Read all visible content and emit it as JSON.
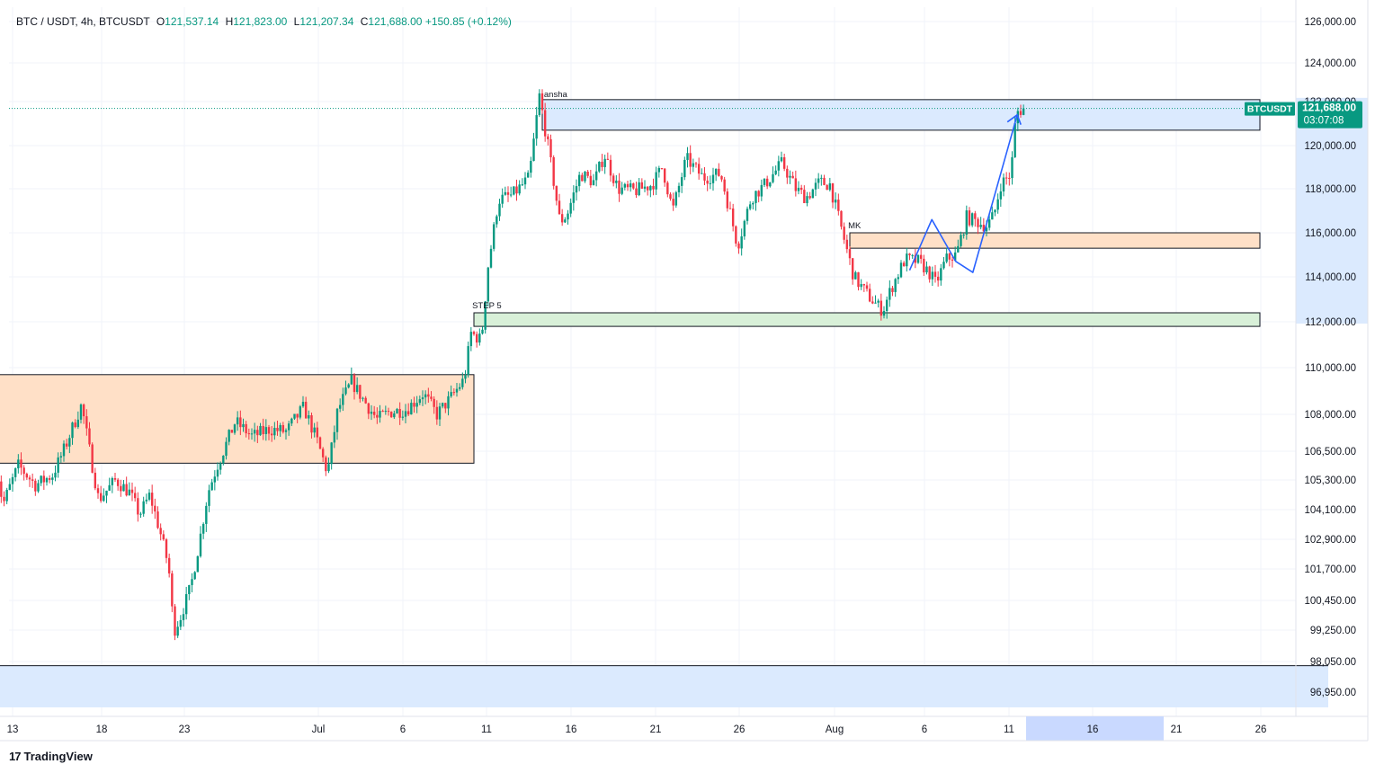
{
  "header": {
    "symbol": "BTC / USDT, 4h, BTCUSDT",
    "open_label": "O",
    "open": "121,537.14",
    "high_label": "H",
    "high": "121,823.00",
    "low_label": "L",
    "low": "121,207.34",
    "close_label": "C",
    "close": "121,688.00",
    "change": "+150.85 (+0.12%)"
  },
  "price_tag": {
    "symbol": "BTCUSDT",
    "price": "121,688.00",
    "countdown": "03:07:08"
  },
  "footer": {
    "logo_mark": "17",
    "brand": "TradingView"
  },
  "colors": {
    "up": "#089981",
    "down": "#f23645",
    "zone_orange": "#ffe0c7",
    "zone_blue": "#dbeafe",
    "zone_green": "#d8f0d8",
    "path": "#2962ff",
    "grid": "#f0f3fa"
  },
  "chart_data": {
    "type": "candlestick",
    "timeframe": "4h",
    "y_tick_labels": [
      "126,000.00",
      "124,000.00",
      "122,000.00",
      "120,000.00",
      "118,000.00",
      "116,000.00",
      "114,000.00",
      "112,000.00",
      "110,000.00",
      "108,000.00",
      "106,500.00",
      "105,300.00",
      "104,100.00",
      "102,900.00",
      "101,700.00",
      "100,450.00",
      "99,250.00",
      "98,050.00",
      "96,950.00"
    ],
    "x_tick_labels": [
      "13",
      "18",
      "23",
      "Jul",
      "6",
      "11",
      "16",
      "21",
      "26",
      "Aug",
      "6",
      "11",
      "16",
      "21",
      "26"
    ],
    "last_price": 121688,
    "annotations": [
      {
        "label": "ansha",
        "price": 122000
      },
      {
        "label": "MK",
        "price": 116000
      },
      {
        "label": "STEP 5",
        "price": 112400
      }
    ],
    "zones": [
      {
        "name": "orange-range",
        "from": "Jun 12",
        "to": "Jul 10",
        "top": 109700,
        "bottom": 106000
      },
      {
        "name": "blue-supply",
        "from": "Jul 14",
        "to": "Aug 25",
        "top": 122100,
        "bottom": 120700
      },
      {
        "name": "orange-mk",
        "from": "Aug 1",
        "to": "Aug 25",
        "top": 116000,
        "bottom": 115300
      },
      {
        "name": "green-step5",
        "from": "Jul 10",
        "to": "Aug 25",
        "top": 112400,
        "bottom": 111800
      },
      {
        "name": "blue-lower",
        "from": "Jun 12",
        "to": "Aug 29",
        "top": 97900,
        "bottom": 96400
      }
    ],
    "projection_path": [
      {
        "date": "Aug 4.5",
        "price": 114300
      },
      {
        "date": "Aug 5.8",
        "price": 116600
      },
      {
        "date": "Aug 7.2",
        "price": 114700
      },
      {
        "date": "Aug 8.2",
        "price": 114200
      },
      {
        "date": "Aug 10.8",
        "price": 121400
      }
    ],
    "price_path": [
      {
        "date": "Jun 12.0",
        "price": 106800
      },
      {
        "date": "Jun 12.6",
        "price": 104300
      },
      {
        "date": "Jun 13.5",
        "price": 105900
      },
      {
        "date": "Jun 14.5",
        "price": 105100
      },
      {
        "date": "Jun 15.5",
        "price": 105500
      },
      {
        "date": "Jun 16.2",
        "price": 106600
      },
      {
        "date": "Jun 17.2",
        "price": 108400
      },
      {
        "date": "Jun 17.7",
        "price": 106400
      },
      {
        "date": "Jun 18.2",
        "price": 104500
      },
      {
        "date": "Jun 19.2",
        "price": 105300
      },
      {
        "date": "Jun 20.0",
        "price": 104800
      },
      {
        "date": "Jun 20.6",
        "price": 103900
      },
      {
        "date": "Jun 21.2",
        "price": 104700
      },
      {
        "date": "Jun 21.8",
        "price": 103200
      },
      {
        "date": "Jun 22.3",
        "price": 101800
      },
      {
        "date": "Jun 22.6",
        "price": 99200
      },
      {
        "date": "Jun 23.0",
        "price": 99800
      },
      {
        "date": "Jun 23.6",
        "price": 101000
      },
      {
        "date": "Jun 24.1",
        "price": 102800
      },
      {
        "date": "Jun 24.6",
        "price": 104800
      },
      {
        "date": "Jun 25.2",
        "price": 106000
      },
      {
        "date": "Jun 26.2",
        "price": 107700
      },
      {
        "date": "Jun 27.2",
        "price": 107100
      },
      {
        "date": "Jun 28.2",
        "price": 107400
      },
      {
        "date": "Jun 29.2",
        "price": 107300
      },
      {
        "date": "Jun 30.2",
        "price": 108300
      },
      {
        "date": "Jul 1.0",
        "price": 106900
      },
      {
        "date": "Jul 1.6",
        "price": 105600
      },
      {
        "date": "Jul 2.2",
        "price": 108200
      },
      {
        "date": "Jul 3.0",
        "price": 109400
      },
      {
        "date": "Jul 4.0",
        "price": 108300
      },
      {
        "date": "Jul 4.5",
        "price": 107800
      },
      {
        "date": "Jul 5.2",
        "price": 108100
      },
      {
        "date": "Jul 6.2",
        "price": 108200
      },
      {
        "date": "Jul 7.2",
        "price": 108900
      },
      {
        "date": "Jul 8.0",
        "price": 108000
      },
      {
        "date": "Jul 8.8",
        "price": 108700
      },
      {
        "date": "Jul 9.6",
        "price": 109500
      },
      {
        "date": "Jul 10.0",
        "price": 111500
      },
      {
        "date": "Jul 10.6",
        "price": 111200
      },
      {
        "date": "Jul 11.0",
        "price": 114500
      },
      {
        "date": "Jul 11.6",
        "price": 117500
      },
      {
        "date": "Jul 12.4",
        "price": 117700
      },
      {
        "date": "Jul 13.4",
        "price": 118500
      },
      {
        "date": "Jul 14.0",
        "price": 122300
      },
      {
        "date": "Jul 14.6",
        "price": 119500
      },
      {
        "date": "Jul 15.2",
        "price": 116500
      },
      {
        "date": "Jul 15.6",
        "price": 116800
      },
      {
        "date": "Jul 16.4",
        "price": 118700
      },
      {
        "date": "Jul 17.2",
        "price": 118300
      },
      {
        "date": "Jul 17.8",
        "price": 119600
      },
      {
        "date": "Jul 18.6",
        "price": 118000
      },
      {
        "date": "Jul 19.6",
        "price": 117900
      },
      {
        "date": "Jul 20.6",
        "price": 118200
      },
      {
        "date": "Jul 21.2",
        "price": 119000
      },
      {
        "date": "Jul 21.8",
        "price": 117000
      },
      {
        "date": "Jul 22.6",
        "price": 119400
      },
      {
        "date": "Jul 23.6",
        "price": 118500
      },
      {
        "date": "Jul 24.6",
        "price": 118700
      },
      {
        "date": "Jul 25.2",
        "price": 116800
      },
      {
        "date": "Jul 25.6",
        "price": 115400
      },
      {
        "date": "Jul 26.4",
        "price": 117600
      },
      {
        "date": "Jul 27.2",
        "price": 118200
      },
      {
        "date": "Jul 28.2",
        "price": 119200
      },
      {
        "date": "Jul 29.0",
        "price": 118000
      },
      {
        "date": "Jul 29.6",
        "price": 117600
      },
      {
        "date": "Jul 30.4",
        "price": 118300
      },
      {
        "date": "Jul 31.0",
        "price": 118200
      },
      {
        "date": "Jul 31.8",
        "price": 115800
      },
      {
        "date": "Aug 1.4",
        "price": 114000
      },
      {
        "date": "Aug 2.2",
        "price": 113200
      },
      {
        "date": "Aug 2.8",
        "price": 112700
      },
      {
        "date": "Aug 3.1",
        "price": 112500
      },
      {
        "date": "Aug 3.6",
        "price": 113500
      },
      {
        "date": "Aug 4.4",
        "price": 114800
      },
      {
        "date": "Aug 5.2",
        "price": 114700
      },
      {
        "date": "Aug 5.8",
        "price": 114200
      },
      {
        "date": "Aug 6.2",
        "price": 113700
      },
      {
        "date": "Aug 6.8",
        "price": 114800
      },
      {
        "date": "Aug 7.4",
        "price": 115000
      },
      {
        "date": "Aug 8.0",
        "price": 116700
      },
      {
        "date": "Aug 8.6",
        "price": 116500
      },
      {
        "date": "Aug 9.2",
        "price": 116300
      },
      {
        "date": "Aug 9.6",
        "price": 116800
      },
      {
        "date": "Aug 10.0",
        "price": 118200
      },
      {
        "date": "Aug 10.6",
        "price": 118700
      },
      {
        "date": "Aug 10.9",
        "price": 121500
      },
      {
        "date": "Aug 11.3",
        "price": 121688
      }
    ]
  }
}
